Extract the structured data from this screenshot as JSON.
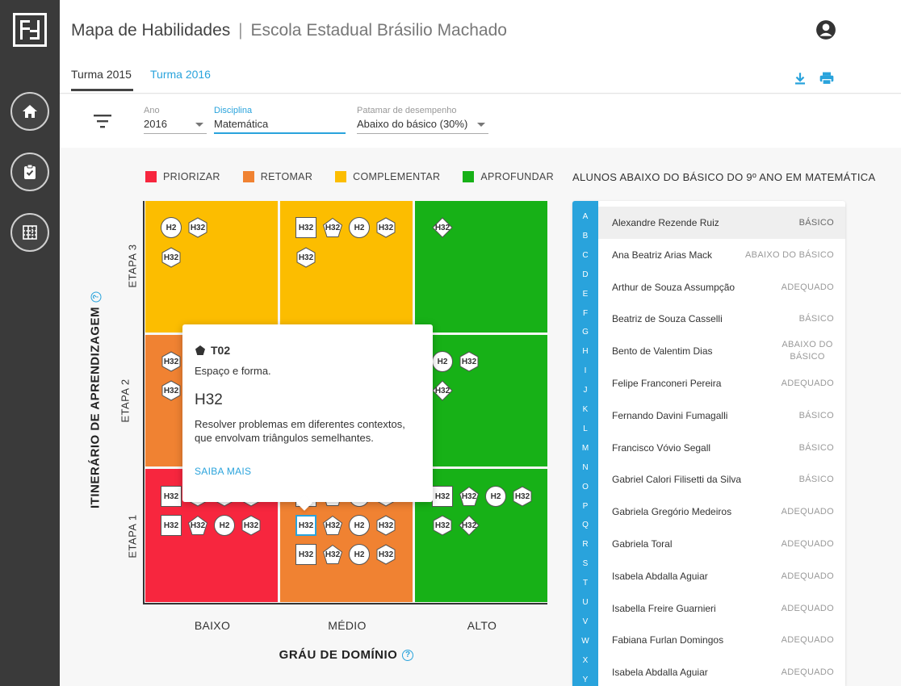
{
  "header": {
    "title": "Mapa de Habilidades",
    "separator": "|",
    "school": "Escola Estadual Brásilio Machado"
  },
  "tabs": [
    {
      "label": "Turma 2015",
      "active": true
    },
    {
      "label": "Turma 2016",
      "active": false
    }
  ],
  "sidebar": {
    "items": [
      {
        "icon": "home-icon"
      },
      {
        "icon": "clipboard-check-icon"
      },
      {
        "icon": "grid-map-icon"
      }
    ]
  },
  "filters": {
    "ano": {
      "label": "Ano",
      "value": "2016"
    },
    "disciplina": {
      "label": "Disciplina",
      "value": "Matemática"
    },
    "patamar": {
      "label": "Patamar de desempenho",
      "value": "Abaixo do básico (30%)"
    }
  },
  "legend": [
    {
      "label": "PRIORIZAR",
      "color": "#f7263e"
    },
    {
      "label": "RETOMAR",
      "color": "#f08232"
    },
    {
      "label": "COMPLEMENTAR",
      "color": "#fcbd00"
    },
    {
      "label": "APROFUNDAR",
      "color": "#17b117"
    }
  ],
  "grid": {
    "y_title": "ITINERÁRIO DE APRENDIZAGEM",
    "x_title": "GRÁU DE DOMÍNIO",
    "help_glyph": "?",
    "rows": [
      "ETAPA 3",
      "ETAPA 2",
      "ETAPA 1"
    ],
    "cols": [
      "BAIXO",
      "MÉDIO",
      "ALTO"
    ]
  },
  "popover": {
    "code": "T02",
    "subtitle": "Espaço e forma.",
    "skill": "H32",
    "description": "Resolver problemas em diferentes contextos, que envolvam triângulos semelhantes.",
    "link": "SAIBA MAIS"
  },
  "tokens": {
    "h2": "H2",
    "h32": "H32"
  },
  "students": {
    "title": "ALUNOS ABAIXO DO BÁSICO DO 9º ANO EM MATEMÁTICA",
    "letters": [
      "A",
      "B",
      "C",
      "D",
      "E",
      "F",
      "G",
      "H",
      "I",
      "J",
      "K",
      "L",
      "M",
      "N",
      "O",
      "P",
      "Q",
      "R",
      "S",
      "T",
      "U",
      "V",
      "W",
      "X",
      "Y"
    ],
    "rows": [
      {
        "name": "Alexandre Rezende Ruiz",
        "status": "BÁSICO"
      },
      {
        "name": "Ana Beatriz Arias Mack",
        "status": "ABAIXO DO BÁSICO"
      },
      {
        "name": "Arthur de Souza Assumpção",
        "status": "ADEQUADO"
      },
      {
        "name": "Beatriz de Souza Casselli",
        "status": "BÁSICO"
      },
      {
        "name": "Bento de Valentim Dias",
        "status": "ABAIXO DO BÁSICO"
      },
      {
        "name": "Felipe Franconeri Pereira",
        "status": "ADEQUADO"
      },
      {
        "name": "Fernando Davini Fumagalli",
        "status": "BÁSICO"
      },
      {
        "name": "Francisco Vóvio Segall",
        "status": "BÁSICO"
      },
      {
        "name": "Gabriel Calori Filisetti da Silva",
        "status": "BÁSICO"
      },
      {
        "name": "Gabriela Gregório Medeiros",
        "status": "ADEQUADO"
      },
      {
        "name": "Gabriela Toral",
        "status": "ADEQUADO"
      },
      {
        "name": "Isabela Abdalla Aguiar",
        "status": "ADEQUADO"
      },
      {
        "name": "Isabella Freire Guarnieri",
        "status": "ADEQUADO"
      },
      {
        "name": "Fabiana Furlan Domingos",
        "status": "ADEQUADO"
      },
      {
        "name": "Isabela Abdalla Aguiar",
        "status": "ADEQUADO"
      }
    ]
  }
}
